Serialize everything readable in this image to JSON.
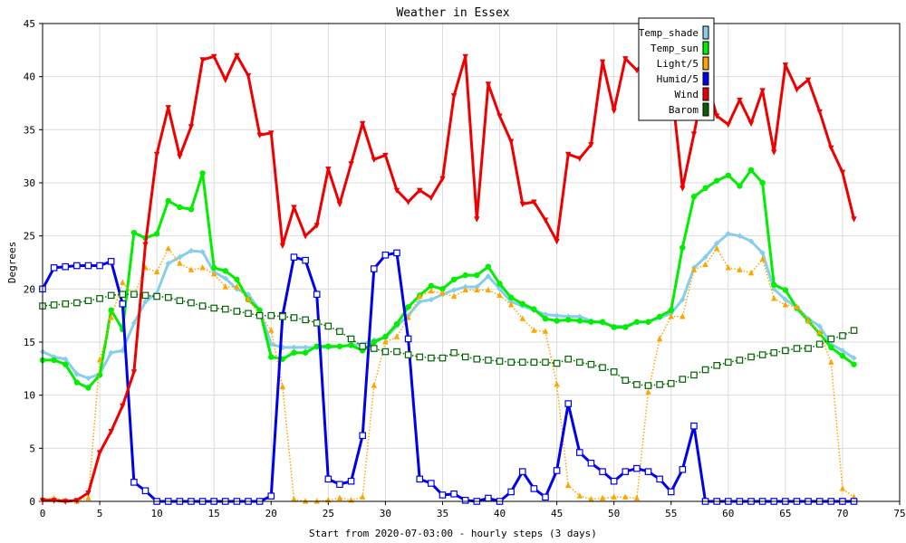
{
  "chart_data": {
    "type": "line",
    "title": "Weather in Essex",
    "xlabel": "Start from 2020-07-03:00 - hourly steps (3 days)",
    "ylabel": "Degrees",
    "xlim": [
      0,
      75
    ],
    "ylim": [
      0,
      45
    ],
    "xticks": [
      0,
      5,
      10,
      15,
      20,
      25,
      30,
      35,
      40,
      45,
      50,
      55,
      60,
      65,
      70,
      75
    ],
    "yticks": [
      0,
      5,
      10,
      15,
      20,
      25,
      30,
      35,
      40,
      45
    ],
    "grid": true,
    "legend_position": "top-right",
    "series": [
      {
        "name": "Temp_shade",
        "color": "#87ceeb",
        "marker": "diamond",
        "style": "solid",
        "values": [
          14.1,
          13.6,
          13.4,
          12.0,
          11.6,
          12.0,
          14.0,
          14.2,
          16.8,
          18.8,
          19.6,
          22.4,
          23.0,
          23.6,
          23.5,
          21.6,
          21.0,
          20.0,
          19.5,
          18.0,
          14.8,
          14.5,
          14.5,
          14.5,
          14.5,
          14.5,
          14.6,
          14.7,
          14.8,
          15.2,
          15.4,
          16.5,
          17.5,
          18.8,
          19.0,
          19.5,
          19.9,
          20.2,
          20.2,
          21.2,
          20.0,
          18.8,
          18.4,
          18.0,
          17.6,
          17.5,
          17.4,
          17.4,
          17.0,
          16.8,
          16.5,
          16.5,
          16.9,
          16.9,
          17.3,
          17.7,
          19.0,
          22.0,
          23.0,
          24.3,
          25.2,
          25.0,
          24.5,
          23.4,
          20.0,
          19.0,
          18.3,
          17.2,
          16.5,
          14.8,
          14.2,
          13.5
        ]
      },
      {
        "name": "Temp_sun",
        "color": "#00ee00",
        "marker": "circle",
        "style": "solid",
        "values": [
          13.3,
          13.3,
          12.9,
          11.2,
          10.7,
          11.9,
          18.0,
          16.2,
          25.3,
          24.8,
          25.2,
          28.3,
          27.7,
          27.5,
          30.9,
          22.0,
          21.7,
          20.9,
          19.0,
          18.0,
          13.6,
          13.4,
          14.0,
          14.0,
          14.6,
          14.6,
          14.6,
          14.7,
          14.2,
          15.0,
          15.5,
          16.7,
          18.3,
          19.4,
          20.3,
          20.0,
          20.9,
          21.3,
          21.3,
          22.1,
          20.5,
          19.2,
          18.6,
          18.1,
          17.2,
          17.0,
          17.1,
          17.0,
          16.9,
          16.9,
          16.4,
          16.4,
          16.9,
          16.9,
          17.4,
          18.0,
          23.9,
          28.7,
          29.5,
          30.2,
          30.7,
          29.7,
          31.2,
          30.0,
          20.4,
          19.9,
          18.2,
          17.0,
          15.8,
          14.5,
          13.7,
          12.9
        ]
      },
      {
        "name": "Light/5",
        "color": "#ffa500",
        "marker": "triangle",
        "style": "dotted",
        "values": [
          0.2,
          0.3,
          0.1,
          0.0,
          0.3,
          13.3,
          17.3,
          20.6,
          19.4,
          22.0,
          21.6,
          23.8,
          22.4,
          21.8,
          22.0,
          21.4,
          20.2,
          20.2,
          19.0,
          17.6,
          16.1,
          10.8,
          0.2,
          0.0,
          0.0,
          0.1,
          0.3,
          0.1,
          0.4,
          10.9,
          15.0,
          15.5,
          17.3,
          19.3,
          19.8,
          19.6,
          19.3,
          19.9,
          19.9,
          19.9,
          19.4,
          18.5,
          17.2,
          16.1,
          16.0,
          11.0,
          1.5,
          0.5,
          0.2,
          0.3,
          0.4,
          0.4,
          0.3,
          10.3,
          15.3,
          17.4,
          17.4,
          21.8,
          22.3,
          23.8,
          22.0,
          21.8,
          21.5,
          22.8,
          19.1,
          18.5,
          18.3,
          17.0,
          15.9,
          13.1,
          1.2,
          0.4
        ]
      },
      {
        "name": "Humid/5",
        "color": "#0000ee",
        "marker": "square",
        "style": "solid",
        "values": [
          20.0,
          22.0,
          22.1,
          22.2,
          22.2,
          22.2,
          22.6,
          18.6,
          1.8,
          1.0,
          0.0,
          0.0,
          0.0,
          0.0,
          0.0,
          0.0,
          0.0,
          0.0,
          0.0,
          0.0,
          0.5,
          17.5,
          23.0,
          22.7,
          19.5,
          2.1,
          1.6,
          1.9,
          6.2,
          21.9,
          23.2,
          23.4,
          15.3,
          2.1,
          1.7,
          0.6,
          0.7,
          0.1,
          0.0,
          0.3,
          0.0,
          0.9,
          2.8,
          1.2,
          0.4,
          2.9,
          9.2,
          4.6,
          3.6,
          2.8,
          1.9,
          2.8,
          3.1,
          2.8,
          2.1,
          0.9,
          3.0,
          7.1,
          0.0,
          0.0,
          0.0,
          0.0,
          0.0,
          0.0,
          0.0,
          0.0,
          0.0,
          0.0,
          0.0,
          0.0,
          0.0,
          0.0
        ]
      },
      {
        "name": "Wind",
        "color": "#ee0000",
        "marker": "inverted-triangle",
        "style": "solid",
        "values": [
          0.1,
          0.1,
          0.0,
          0.1,
          0.8,
          4.6,
          6.6,
          9.0,
          12.2,
          24.2,
          32.7,
          37.1,
          32.5,
          35.3,
          41.6,
          41.9,
          39.7,
          42.0,
          40.1,
          34.5,
          34.7,
          24.1,
          27.7,
          25.0,
          26.0,
          31.3,
          28.0,
          31.8,
          35.6,
          32.2,
          32.6,
          29.3,
          28.2,
          29.3,
          28.6,
          30.4,
          38.2,
          41.9,
          26.6,
          39.3,
          36.3,
          33.9,
          28.0,
          28.2,
          26.5,
          24.5,
          32.7,
          32.3,
          33.6,
          41.4,
          36.8,
          41.7,
          40.6,
          41.8,
          40.5,
          39.5,
          29.5,
          34.6,
          40.0,
          36.3,
          35.5,
          37.8,
          35.6,
          38.7,
          32.9,
          41.1,
          38.8,
          39.7,
          36.7,
          33.3,
          31.0,
          26.6
        ]
      },
      {
        "name": "Barom",
        "color": "#006400",
        "marker": "square",
        "style": "dotted",
        "values": [
          18.4,
          18.5,
          18.6,
          18.7,
          18.9,
          19.1,
          19.4,
          19.5,
          19.5,
          19.4,
          19.3,
          19.2,
          18.9,
          18.7,
          18.4,
          18.2,
          18.1,
          17.9,
          17.7,
          17.5,
          17.5,
          17.4,
          17.3,
          17.1,
          16.8,
          16.5,
          16.0,
          15.3,
          14.6,
          14.4,
          14.1,
          14.1,
          13.8,
          13.6,
          13.5,
          13.5,
          14.0,
          13.6,
          13.4,
          13.3,
          13.2,
          13.1,
          13.1,
          13.1,
          13.1,
          13.0,
          13.4,
          13.1,
          12.9,
          12.6,
          12.2,
          11.4,
          11.0,
          10.9,
          11.0,
          11.1,
          11.5,
          11.9,
          12.4,
          12.8,
          13.1,
          13.3,
          13.6,
          13.8,
          14.0,
          14.2,
          14.4,
          14.4,
          14.8,
          15.3,
          15.6,
          16.1
        ]
      }
    ]
  }
}
